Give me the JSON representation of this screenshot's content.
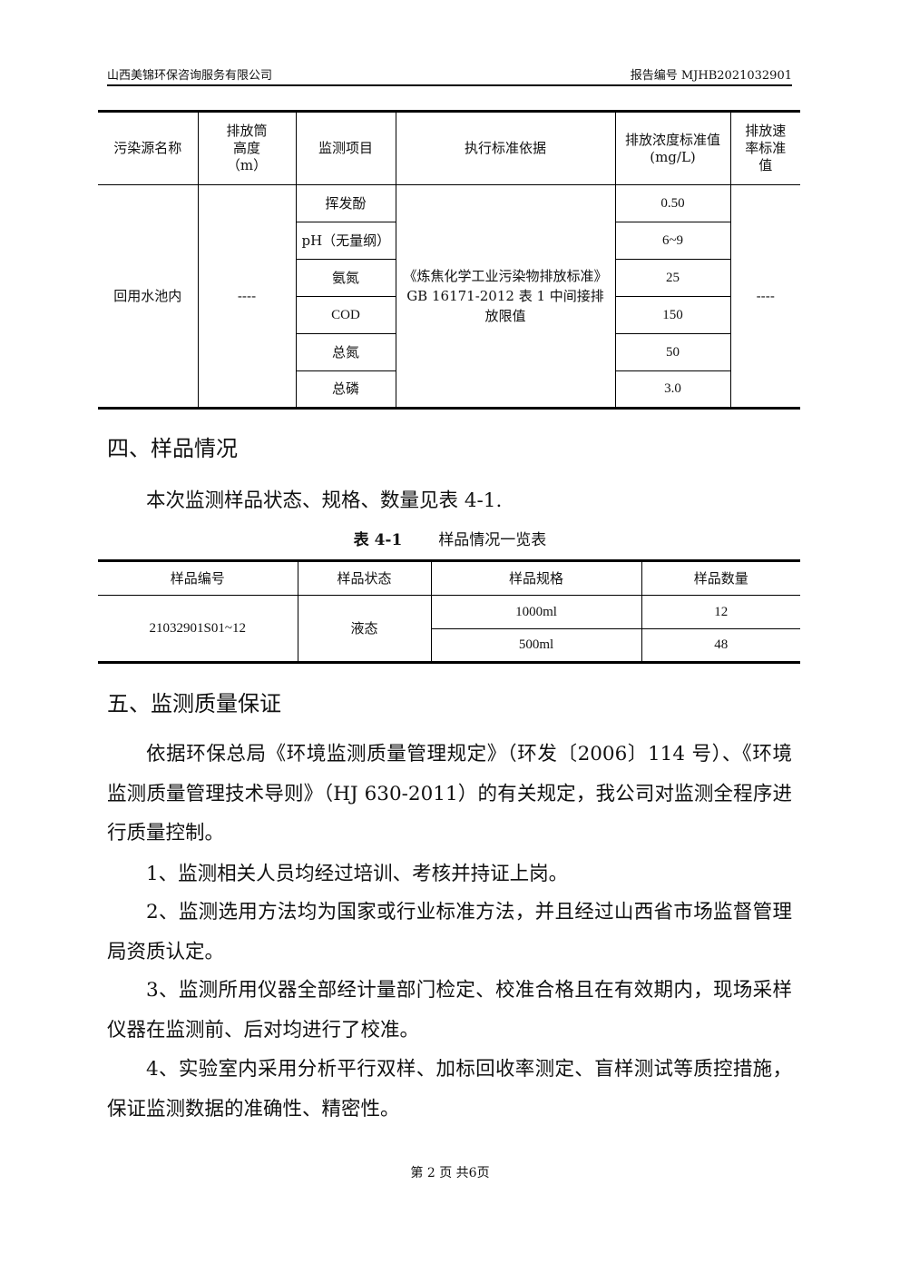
{
  "header": {
    "company": "山西美锦环保咨询服务有限公司",
    "report_no": "报告编号 MJHB2021032901"
  },
  "table1": {
    "headers": [
      "污染源名称",
      "排放筒高度（m）",
      "监测项目",
      "执行标准依据",
      "排放浓度标准值(mg/L)",
      "排放速率标准值"
    ],
    "source": "回用水池内",
    "height": "----",
    "standard": "《炼焦化学工业污染物排放标准》GB 16171-2012 表 1 中间接排放限值",
    "rate": "----",
    "rows": [
      {
        "item": "挥发酚",
        "value": "0.50"
      },
      {
        "item": "pH（无量纲）",
        "value": "6~9"
      },
      {
        "item": "氨氮",
        "value": "25"
      },
      {
        "item": "COD",
        "value": "150"
      },
      {
        "item": "总氮",
        "value": "50"
      },
      {
        "item": "总磷",
        "value": "3.0"
      }
    ]
  },
  "section4": {
    "title": "四、样品情况",
    "intro": "本次监测样品状态、规格、数量见表 4-1.",
    "caption_no": "表 4-1",
    "caption_title": "样品情况一览表",
    "headers": [
      "样品编号",
      "样品状态",
      "样品规格",
      "样品数量"
    ],
    "sample_id": "21032901S01~12",
    "state": "液态",
    "rows": [
      {
        "spec": "1000ml",
        "qty": "12"
      },
      {
        "spec": "500ml",
        "qty": "48"
      }
    ]
  },
  "section5": {
    "title": "五、监测质量保证",
    "paragraphs": [
      "依据环保总局《环境监测质量管理规定》（环发〔2006〕114 号）、《环境监测质量管理技术导则》（HJ 630-2011）的有关规定，我公司对监测全程序进行质量控制。",
      "1、监测相关人员均经过培训、考核并持证上岗。",
      "2、监测选用方法均为国家或行业标准方法，并且经过山西省市场监督管理局资质认定。",
      "3、监测所用仪器全部经计量部门检定、校准合格且在有效期内，现场采样仪器在监测前、后对均进行了校准。",
      "4、实验室内采用分析平行双样、加标回收率测定、盲样测试等质控措施，保证监测数据的准确性、精密性。"
    ]
  },
  "footer": "第 2 页 共6页"
}
